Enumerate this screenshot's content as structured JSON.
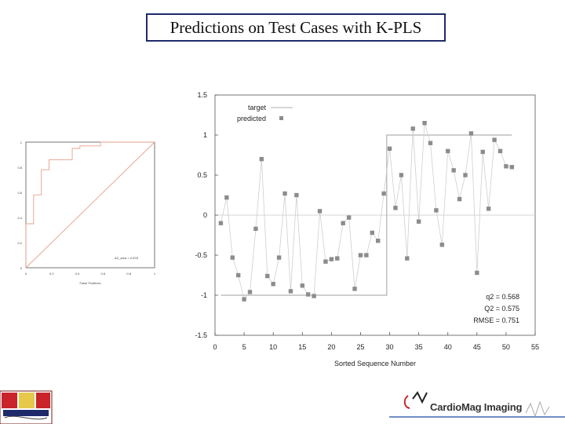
{
  "slide_title": "Predictions on Test Cases with K-PLS",
  "colors": {
    "target": "#b0b0b0",
    "predicted": "#8c8c8c",
    "roc_curve": "#e8a08a",
    "diagonal": "#e8a08a",
    "title_border": "#1f2a6b"
  },
  "chart_data": [
    {
      "type": "scatter",
      "xlabel": "Sorted Sequence Number",
      "ylabel": "",
      "xlim": [
        0,
        55
      ],
      "ylim": [
        -1.5,
        1.5
      ],
      "xticks": [
        "0",
        "5",
        "10",
        "15",
        "20",
        "25",
        "30",
        "35",
        "40",
        "45",
        "50",
        "55"
      ],
      "yticks": [
        "1.5",
        "1",
        "0.5",
        "0",
        "-0.5",
        "-1",
        "-1.5"
      ],
      "legend": [
        "target",
        "predicted"
      ],
      "legend_position": "top-left",
      "zero_line": true,
      "annotations": [
        "q2 = 0.568",
        "Q2 = 0.575",
        "RMSE = 0.751"
      ],
      "series": [
        {
          "name": "target",
          "kind": "step-line",
          "x": [
            1,
            29.5,
            29.5,
            51
          ],
          "y": [
            -1,
            -1,
            1,
            1
          ]
        },
        {
          "name": "predicted",
          "kind": "markers+line",
          "x": [
            1,
            2,
            3,
            4,
            5,
            6,
            7,
            8,
            9,
            10,
            11,
            12,
            13,
            14,
            15,
            16,
            17,
            18,
            19,
            20,
            21,
            22,
            23,
            24,
            25,
            26,
            27,
            28,
            29,
            30,
            31,
            32,
            33,
            34,
            35,
            36,
            37,
            38,
            39,
            40,
            41,
            42,
            43,
            44,
            45,
            46,
            47,
            48,
            49,
            50,
            51
          ],
          "y": [
            -0.1,
            0.22,
            -0.53,
            -0.75,
            -1.05,
            -0.96,
            -0.17,
            0.7,
            -0.76,
            -0.86,
            -0.53,
            0.27,
            -0.95,
            0.25,
            -0.88,
            -0.99,
            -1.01,
            0.05,
            -0.58,
            -0.55,
            -0.54,
            -0.1,
            -0.03,
            -0.92,
            -0.5,
            -0.5,
            -0.22,
            -0.32,
            0.27,
            0.83,
            0.09,
            0.5,
            -0.54,
            1.08,
            -0.08,
            1.15,
            0.9,
            0.06,
            -0.37,
            0.8,
            0.56,
            0.2,
            0.5,
            1.02,
            -0.72,
            0.79,
            0.08,
            0.94,
            0.8,
            0.61,
            0.6
          ]
        }
      ]
    },
    {
      "type": "line",
      "subtype": "roc",
      "xlabel": "False Positives",
      "xticks": [
        "0",
        "0.2",
        "0.4",
        "0.6",
        "0.8",
        "1"
      ],
      "yticks": [
        "0",
        "0.2",
        "0.4",
        "0.6",
        "0.8",
        "1"
      ],
      "xlim": [
        0,
        1
      ],
      "ylim": [
        0,
        1
      ],
      "annotation": "AZ_area = 0.878",
      "series": [
        {
          "name": "roc",
          "x": [
            0,
            0,
            0.06,
            0.06,
            0.12,
            0.12,
            0.18,
            0.18,
            0.36,
            0.36,
            0.42,
            0.42,
            0.58,
            0.58,
            1.0
          ],
          "y": [
            0,
            0.35,
            0.35,
            0.58,
            0.58,
            0.78,
            0.78,
            0.86,
            0.86,
            0.95,
            0.95,
            0.97,
            0.97,
            1.0,
            1.0
          ]
        },
        {
          "name": "diagonal",
          "x": [
            0,
            1
          ],
          "y": [
            0,
            1
          ]
        }
      ]
    }
  ],
  "brand_text": "CardioMag Imaging",
  "brand_mark": "CMI"
}
